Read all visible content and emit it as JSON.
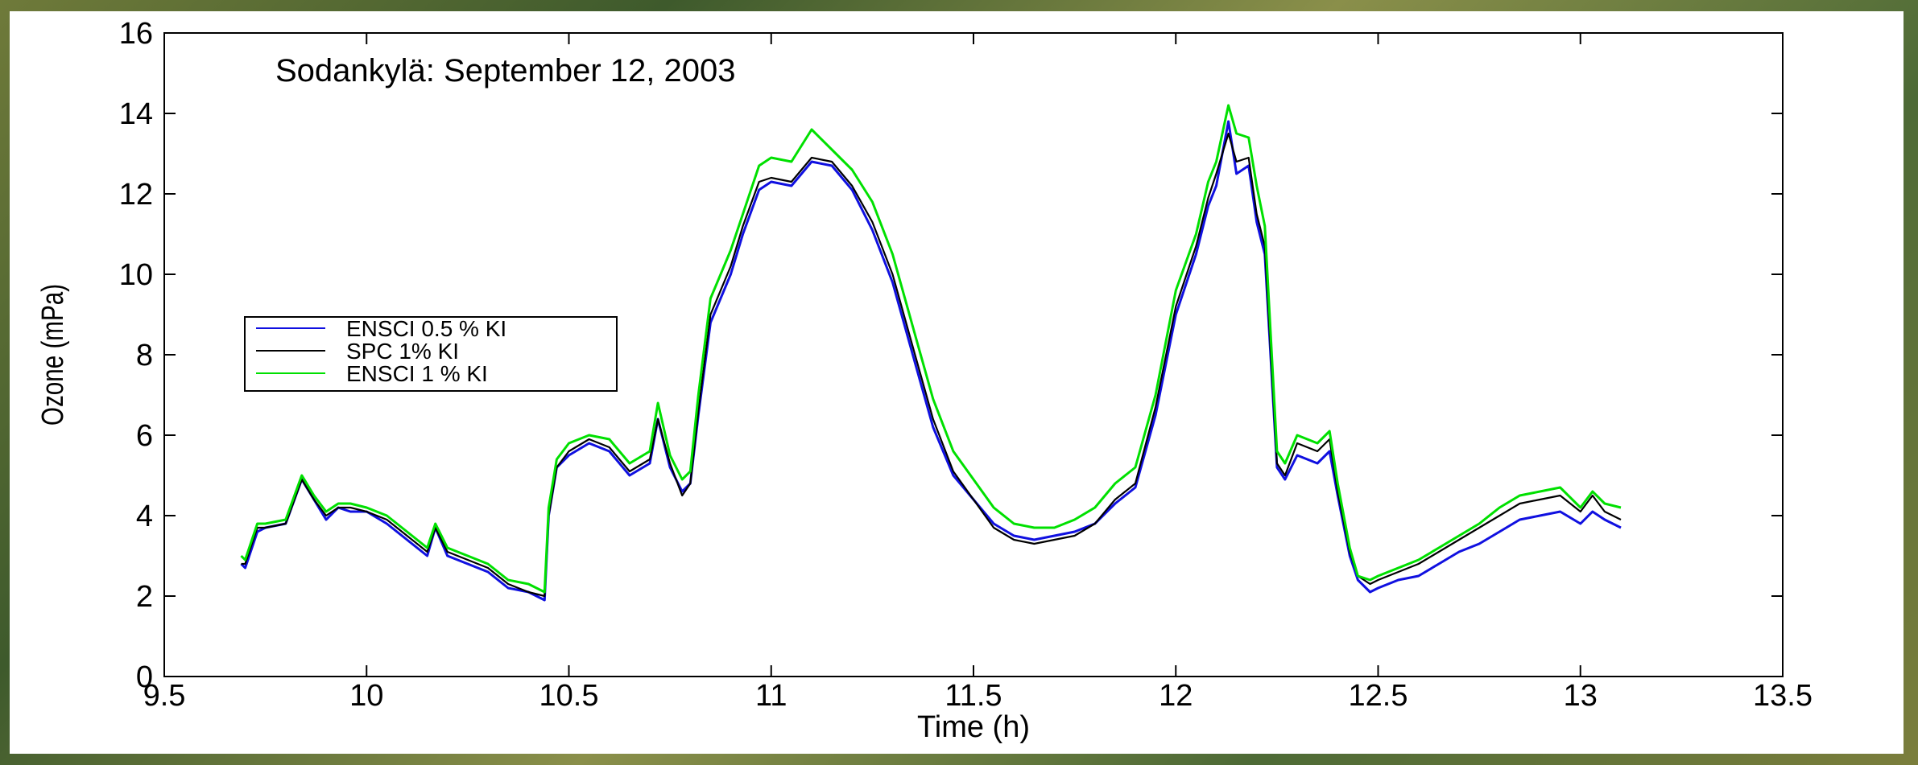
{
  "chart_data": {
    "type": "line",
    "title": "Sodankylä: September 12, 2003",
    "xlabel": "Time (h)",
    "ylabel": "Ozone (mPa)",
    "xlim": [
      9.5,
      13.5
    ],
    "ylim": [
      0,
      16
    ],
    "xticks": [
      "9.5",
      "10",
      "10.5",
      "11",
      "11.5",
      "12",
      "12.5",
      "13",
      "13.5"
    ],
    "yticks": [
      "0",
      "2",
      "4",
      "6",
      "8",
      "10",
      "12",
      "14",
      "16"
    ],
    "grid": false,
    "legend_position": "middle-left",
    "series": [
      {
        "name": "ENSCI 0.5 % KI",
        "color": "#1010e0",
        "x": [
          9.69,
          9.7,
          9.73,
          9.75,
          9.8,
          9.84,
          9.87,
          9.9,
          9.93,
          9.96,
          10.0,
          10.05,
          10.1,
          10.15,
          10.17,
          10.2,
          10.25,
          10.3,
          10.35,
          10.4,
          10.44,
          10.45,
          10.47,
          10.5,
          10.55,
          10.6,
          10.65,
          10.7,
          10.72,
          10.75,
          10.78,
          10.8,
          10.82,
          10.85,
          10.9,
          10.93,
          10.97,
          11.0,
          11.05,
          11.1,
          11.15,
          11.2,
          11.25,
          11.3,
          11.35,
          11.4,
          11.45,
          11.5,
          11.55,
          11.6,
          11.65,
          11.7,
          11.75,
          11.8,
          11.85,
          11.9,
          11.95,
          12.0,
          12.05,
          12.08,
          12.1,
          12.13,
          12.15,
          12.18,
          12.2,
          12.22,
          12.25,
          12.27,
          12.3,
          12.35,
          12.38,
          12.4,
          12.43,
          12.45,
          12.48,
          12.5,
          12.55,
          12.6,
          12.65,
          12.7,
          12.75,
          12.8,
          12.85,
          12.9,
          12.95,
          13.0,
          13.03,
          13.06,
          13.1
        ],
        "y": [
          2.8,
          2.7,
          3.6,
          3.7,
          3.8,
          4.9,
          4.4,
          3.9,
          4.2,
          4.1,
          4.1,
          3.8,
          3.4,
          3.0,
          3.7,
          3.0,
          2.8,
          2.6,
          2.2,
          2.1,
          1.9,
          4.0,
          5.2,
          5.5,
          5.8,
          5.6,
          5.0,
          5.3,
          6.4,
          5.2,
          4.6,
          4.8,
          6.5,
          8.8,
          10.0,
          11.0,
          12.1,
          12.3,
          12.2,
          12.8,
          12.7,
          12.1,
          11.1,
          9.8,
          8.0,
          6.2,
          5.0,
          4.4,
          3.8,
          3.5,
          3.4,
          3.5,
          3.6,
          3.8,
          4.3,
          4.7,
          6.5,
          9.0,
          10.5,
          11.7,
          12.2,
          13.8,
          12.5,
          12.7,
          11.3,
          10.5,
          5.2,
          4.9,
          5.5,
          5.3,
          5.6,
          4.5,
          3.0,
          2.4,
          2.1,
          2.2,
          2.4,
          2.5,
          2.8,
          3.1,
          3.3,
          3.6,
          3.9,
          4.0,
          4.1,
          3.8,
          4.1,
          3.9,
          3.7
        ]
      },
      {
        "name": "SPC 1% KI",
        "color": "#000000",
        "x": [
          9.69,
          9.7,
          9.73,
          9.75,
          9.8,
          9.84,
          9.87,
          9.9,
          9.93,
          9.96,
          10.0,
          10.05,
          10.1,
          10.15,
          10.17,
          10.2,
          10.25,
          10.3,
          10.35,
          10.4,
          10.44,
          10.45,
          10.47,
          10.5,
          10.55,
          10.6,
          10.65,
          10.7,
          10.72,
          10.75,
          10.78,
          10.8,
          10.82,
          10.85,
          10.9,
          10.93,
          10.97,
          11.0,
          11.05,
          11.1,
          11.15,
          11.2,
          11.25,
          11.3,
          11.35,
          11.4,
          11.45,
          11.5,
          11.55,
          11.6,
          11.65,
          11.7,
          11.75,
          11.8,
          11.85,
          11.9,
          11.95,
          12.0,
          12.05,
          12.08,
          12.1,
          12.13,
          12.15,
          12.18,
          12.2,
          12.22,
          12.25,
          12.27,
          12.3,
          12.35,
          12.38,
          12.4,
          12.43,
          12.45,
          12.48,
          12.5,
          12.55,
          12.6,
          12.65,
          12.7,
          12.75,
          12.8,
          12.85,
          12.9,
          12.95,
          13.0,
          13.03,
          13.06,
          13.1
        ],
        "y": [
          2.8,
          2.8,
          3.7,
          3.7,
          3.8,
          4.9,
          4.4,
          4.0,
          4.2,
          4.2,
          4.1,
          3.9,
          3.5,
          3.1,
          3.7,
          3.1,
          2.9,
          2.7,
          2.3,
          2.1,
          2.0,
          4.0,
          5.2,
          5.6,
          5.9,
          5.7,
          5.1,
          5.4,
          6.4,
          5.3,
          4.5,
          4.8,
          6.6,
          9.0,
          10.2,
          11.2,
          12.3,
          12.4,
          12.3,
          12.9,
          12.8,
          12.2,
          11.3,
          10.0,
          8.2,
          6.4,
          5.1,
          4.4,
          3.7,
          3.4,
          3.3,
          3.4,
          3.5,
          3.8,
          4.4,
          4.8,
          6.7,
          9.2,
          10.7,
          11.9,
          12.5,
          13.5,
          12.8,
          12.9,
          11.5,
          10.7,
          5.3,
          5.0,
          5.8,
          5.6,
          5.9,
          4.6,
          3.1,
          2.5,
          2.3,
          2.4,
          2.6,
          2.8,
          3.1,
          3.4,
          3.7,
          4.0,
          4.3,
          4.4,
          4.5,
          4.1,
          4.5,
          4.1,
          3.9
        ]
      },
      {
        "name": "ENSCI 1 % KI",
        "color": "#00e000",
        "x": [
          9.69,
          9.7,
          9.73,
          9.75,
          9.8,
          9.84,
          9.87,
          9.9,
          9.93,
          9.96,
          10.0,
          10.05,
          10.1,
          10.15,
          10.17,
          10.2,
          10.25,
          10.3,
          10.35,
          10.4,
          10.44,
          10.45,
          10.47,
          10.5,
          10.55,
          10.6,
          10.65,
          10.7,
          10.72,
          10.75,
          10.78,
          10.8,
          10.82,
          10.85,
          10.9,
          10.93,
          10.97,
          11.0,
          11.05,
          11.1,
          11.15,
          11.2,
          11.25,
          11.3,
          11.35,
          11.4,
          11.45,
          11.5,
          11.55,
          11.6,
          11.65,
          11.7,
          11.75,
          11.8,
          11.85,
          11.9,
          11.95,
          12.0,
          12.05,
          12.08,
          12.1,
          12.13,
          12.15,
          12.18,
          12.2,
          12.22,
          12.25,
          12.27,
          12.3,
          12.35,
          12.38,
          12.4,
          12.43,
          12.45,
          12.48,
          12.5,
          12.55,
          12.6,
          12.65,
          12.7,
          12.75,
          12.8,
          12.85,
          12.9,
          12.95,
          13.0,
          13.03,
          13.06,
          13.1
        ],
        "y": [
          3.0,
          2.9,
          3.8,
          3.8,
          3.9,
          5.0,
          4.5,
          4.1,
          4.3,
          4.3,
          4.2,
          4.0,
          3.6,
          3.2,
          3.8,
          3.2,
          3.0,
          2.8,
          2.4,
          2.3,
          2.1,
          4.2,
          5.4,
          5.8,
          6.0,
          5.9,
          5.3,
          5.6,
          6.8,
          5.5,
          4.9,
          5.1,
          7.0,
          9.4,
          10.6,
          11.5,
          12.7,
          12.9,
          12.8,
          13.6,
          13.1,
          12.6,
          11.8,
          10.5,
          8.7,
          6.9,
          5.6,
          4.9,
          4.2,
          3.8,
          3.7,
          3.7,
          3.9,
          4.2,
          4.8,
          5.2,
          7.0,
          9.6,
          11.0,
          12.3,
          12.8,
          14.2,
          13.5,
          13.4,
          12.2,
          11.2,
          5.6,
          5.3,
          6.0,
          5.8,
          6.1,
          4.8,
          3.2,
          2.5,
          2.4,
          2.5,
          2.7,
          2.9,
          3.2,
          3.5,
          3.8,
          4.2,
          4.5,
          4.6,
          4.7,
          4.2,
          4.6,
          4.3,
          4.2
        ]
      }
    ]
  }
}
